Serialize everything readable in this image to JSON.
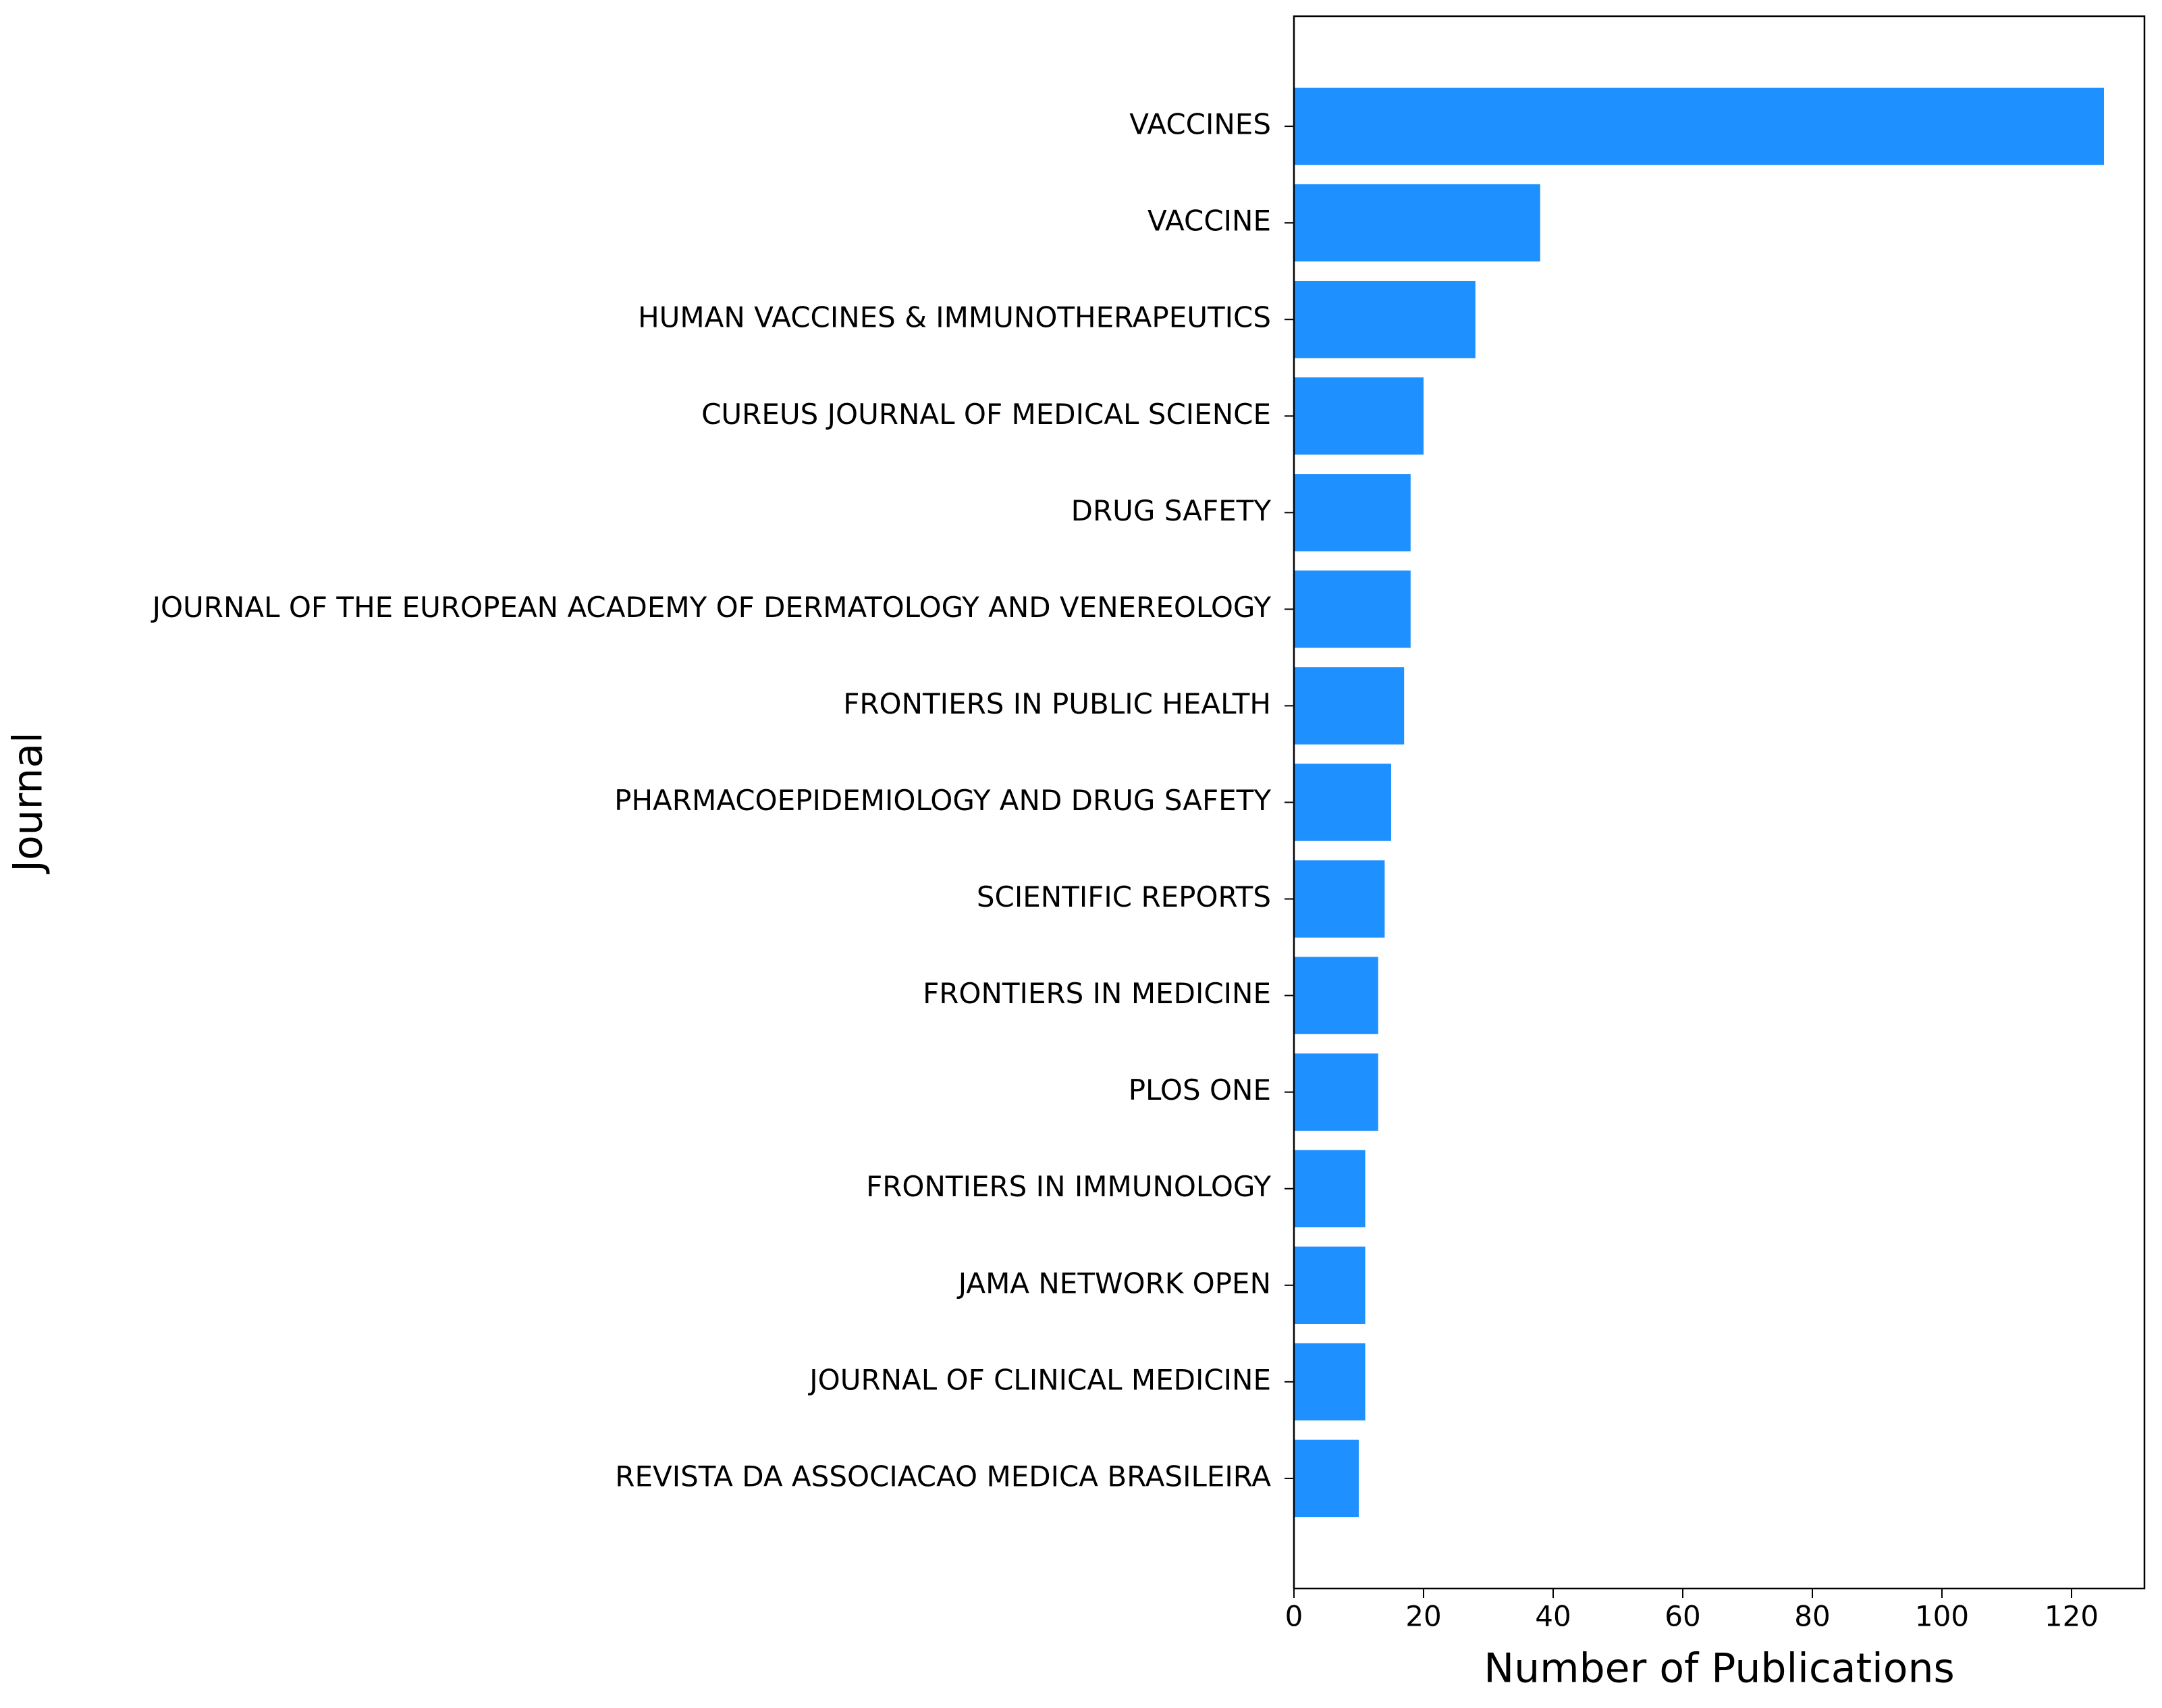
{
  "chart_data": {
    "type": "barh",
    "xlabel": "Number of Publications",
    "ylabel": "Journal",
    "categories": [
      "VACCINES",
      "VACCINE",
      "HUMAN VACCINES & IMMUNOTHERAPEUTICS",
      "CUREUS JOURNAL OF MEDICAL SCIENCE",
      "DRUG SAFETY",
      "JOURNAL OF THE EUROPEAN ACADEMY OF DERMATOLOGY AND VENEREOLOGY",
      "FRONTIERS IN PUBLIC HEALTH",
      "PHARMACOEPIDEMIOLOGY AND DRUG SAFETY",
      "SCIENTIFIC REPORTS",
      "FRONTIERS IN MEDICINE",
      "PLOS ONE",
      "FRONTIERS IN IMMUNOLOGY",
      "JAMA NETWORK OPEN",
      "JOURNAL OF CLINICAL MEDICINE",
      "REVISTA DA ASSOCIACAO MEDICA BRASILEIRA"
    ],
    "values": [
      125,
      38,
      28,
      20,
      18,
      18,
      17,
      15,
      14,
      13,
      13,
      11,
      11,
      11,
      10
    ],
    "color": "#1e90ff",
    "xlim": [
      0,
      131.25
    ],
    "xticks": [
      0,
      20,
      40,
      60,
      80,
      100,
      120
    ],
    "grid": false
  }
}
